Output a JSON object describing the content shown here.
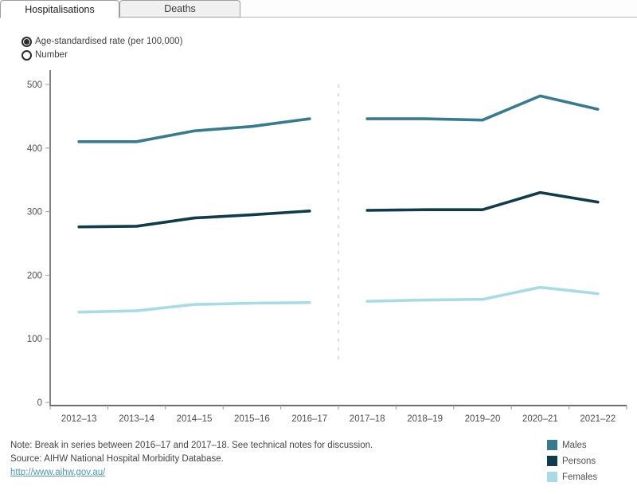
{
  "tabs": [
    {
      "label": "Hospitalisations",
      "active": true
    },
    {
      "label": "Deaths",
      "active": false
    }
  ],
  "controls": {
    "radio_options": [
      {
        "label": "Age-standardised rate (per 100,000)",
        "selected": true
      },
      {
        "label": "Number",
        "selected": false
      }
    ]
  },
  "chart_data": {
    "type": "line",
    "categories": [
      "2012–13",
      "2013–14",
      "2014–15",
      "2015–16",
      "2016–17",
      "2017–18",
      "2018–19",
      "2019–20",
      "2020–21",
      "2021–22"
    ],
    "series": [
      {
        "name": "Males",
        "color": "#377b91",
        "values": [
          410,
          410,
          427,
          434,
          446,
          446,
          446,
          444,
          482,
          461
        ]
      },
      {
        "name": "Persons",
        "color": "#0f3b4c",
        "values": [
          276,
          277,
          290,
          295,
          301,
          302,
          303,
          303,
          330,
          315
        ]
      },
      {
        "name": "Females",
        "color": "#a8dbe8",
        "values": [
          142,
          144,
          154,
          156,
          157,
          159,
          161,
          162,
          181,
          171
        ]
      }
    ],
    "ylabel": "",
    "xlabel": "",
    "ylim": [
      0,
      500
    ],
    "yticks": [
      0,
      100,
      200,
      300,
      400,
      500
    ],
    "break_after_index": 4,
    "break_line_style": "dashed",
    "grid": false,
    "legend_position": "bottom-right"
  },
  "notes": {
    "note": "Note: Break in series between 2016–17 and 2017–18. See technical notes for discussion.",
    "source": "Source: AIHW National Hospital Morbidity Database.",
    "link": "http://www.aihw.gov.au/"
  },
  "colors": {
    "axis": "#3f3f3f",
    "tick": "#9a9a9a",
    "tick_label": "#4f4f4f",
    "break_line": "#c9c9c9",
    "link": "#4e9ab0",
    "tab_active_bg": "#ffffff",
    "tab_inactive_bg": "#f0f0f0"
  }
}
